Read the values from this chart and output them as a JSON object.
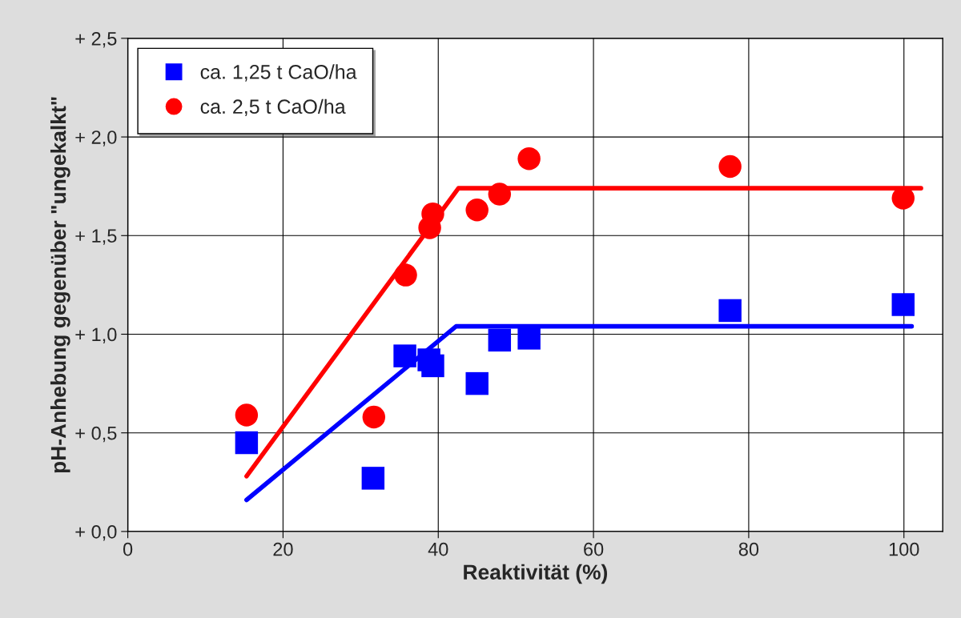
{
  "chart_data": {
    "type": "scatter",
    "xlabel": "Reaktivität (%)",
    "ylabel": "pH-Anhebung gegenüber \"ungekalkt\"",
    "xlim": [
      0,
      105
    ],
    "xticks": [
      0,
      20,
      40,
      60,
      80,
      100
    ],
    "ylim": [
      0,
      2.5
    ],
    "yticks": [
      {
        "value": 0,
        "label": "+ 0,0"
      },
      {
        "value": 0.5,
        "label": "+ 0,5"
      },
      {
        "value": 1,
        "label": "+ 1,0"
      },
      {
        "value": 1.5,
        "label": "+ 1,5"
      },
      {
        "value": 2,
        "label": "+ 2,0"
      },
      {
        "value": 2.5,
        "label": "+ 2,5"
      }
    ],
    "grid": true,
    "legend": "top left",
    "series": [
      {
        "name": "ca. 1,25 t CaO/ha",
        "marker": "square",
        "color": "#0000ff",
        "x": [
          15.3,
          31.6,
          35.7,
          38.8,
          39.3,
          45.0,
          47.9,
          51.7,
          77.6,
          99.9
        ],
        "values": [
          0.45,
          0.27,
          0.89,
          0.87,
          0.84,
          0.75,
          0.97,
          0.98,
          1.12,
          1.15
        ]
      },
      {
        "name": "ca. 2,5 t CaO/ha",
        "marker": "circle",
        "color": "#ff0000",
        "x": [
          15.3,
          31.7,
          35.8,
          38.9,
          39.3,
          45.0,
          47.9,
          51.7,
          77.6,
          99.9
        ],
        "values": [
          0.59,
          0.58,
          1.3,
          1.54,
          1.61,
          1.63,
          1.71,
          1.89,
          1.85,
          1.69
        ]
      },
      {
        "type": "line",
        "color": "#0000ff",
        "x": [
          15.3,
          42.3,
          101
        ],
        "values": [
          0.16,
          1.04,
          1.04
        ]
      },
      {
        "type": "line",
        "color": "#ff0000",
        "x": [
          15.3,
          42.6,
          102.2
        ],
        "values": [
          0.28,
          1.74,
          1.74
        ]
      }
    ]
  }
}
